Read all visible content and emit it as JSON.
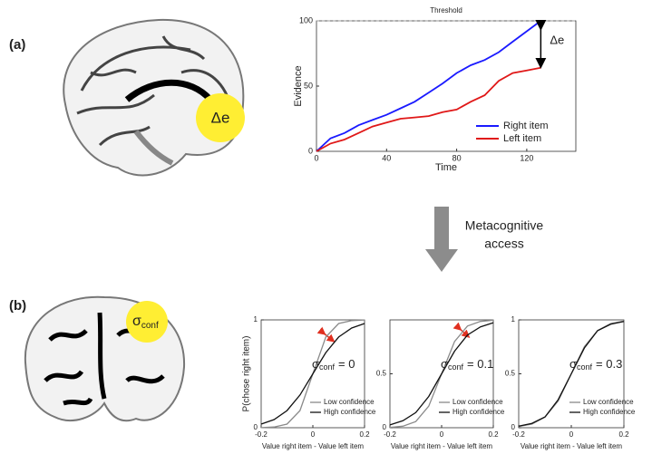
{
  "labels": {
    "panel_a": "(a)",
    "panel_b": "(b)",
    "brain_a": "Δe",
    "brain_b_symbol": "σ",
    "brain_b_sub": "conf",
    "arrow_text": [
      "Metacognitive",
      "access"
    ]
  },
  "chart_data": [
    {
      "type": "line",
      "title": "Threshold",
      "xlabel": "Time",
      "ylabel": "Evidence",
      "x": [
        0,
        8,
        16,
        24,
        32,
        40,
        48,
        56,
        64,
        72,
        80,
        88,
        96,
        104,
        112,
        120,
        128
      ],
      "series": [
        {
          "name": "Right item",
          "color": "#1a1aff",
          "values": [
            0,
            10,
            14,
            20,
            24,
            28,
            33,
            38,
            45,
            52,
            60,
            66,
            70,
            76,
            84,
            92,
            100
          ]
        },
        {
          "name": "Left item",
          "color": "#e01818",
          "values": [
            0,
            6,
            9,
            14,
            19,
            22,
            25,
            26,
            27,
            30,
            32,
            38,
            43,
            54,
            60,
            62,
            64
          ]
        }
      ],
      "xlim": [
        0,
        148
      ],
      "xticks": [
        0,
        40,
        80,
        120
      ],
      "ylim": [
        0,
        100
      ],
      "yticks": [
        0,
        50,
        100
      ],
      "threshold": 100,
      "annotation": "Δe",
      "legend": "lower right"
    },
    {
      "type": "line",
      "xlabel": "Value right item - Value left item",
      "ylabel": "P(chose right item)",
      "x": [
        -0.2,
        -0.15,
        -0.1,
        -0.05,
        0,
        0.05,
        0.1,
        0.15,
        0.2
      ],
      "series": [
        {
          "name": "Low confidence",
          "color": "#8a8a8a",
          "values": [
            0.001,
            0.007,
            0.034,
            0.159,
            0.5,
            0.841,
            0.966,
            0.993,
            0.999
          ]
        },
        {
          "name": "High confidence",
          "color": "#111111",
          "values": [
            0.034,
            0.076,
            0.159,
            0.303,
            0.5,
            0.697,
            0.841,
            0.924,
            0.966
          ]
        }
      ],
      "xlim": [
        -0.2,
        0.2
      ],
      "xticks": [
        -0.2,
        0,
        0.2
      ],
      "ylim": [
        0,
        1
      ],
      "yticks": [
        0,
        1
      ],
      "annotation": {
        "symbol": "σ",
        "subscript": "conf",
        "text": "= 0"
      },
      "legend": "lower right"
    },
    {
      "type": "line",
      "xlabel": "Value right item - Value left item",
      "x": [
        -0.2,
        -0.15,
        -0.1,
        -0.05,
        0,
        0.05,
        0.1,
        0.15,
        0.2
      ],
      "series": [
        {
          "name": "Low confidence",
          "color": "#8a8a8a",
          "values": [
            0.003,
            0.014,
            0.057,
            0.2,
            0.5,
            0.8,
            0.943,
            0.986,
            0.997
          ]
        },
        {
          "name": "High confidence",
          "color": "#111111",
          "values": [
            0.026,
            0.065,
            0.14,
            0.29,
            0.5,
            0.71,
            0.86,
            0.935,
            0.974
          ]
        }
      ],
      "xlim": [
        -0.2,
        0.2
      ],
      "xticks": [
        -0.2,
        0,
        0.2
      ],
      "ylim": [
        0,
        1
      ],
      "yticks": [
        0,
        0.5
      ],
      "annotation": {
        "symbol": "σ",
        "subscript": "conf",
        "text": "= 0.1"
      },
      "legend": "lower right"
    },
    {
      "type": "line",
      "xlabel": "Value right item - Value left item",
      "x": [
        -0.2,
        -0.15,
        -0.1,
        -0.05,
        0,
        0.05,
        0.1,
        0.15,
        0.2
      ],
      "series": [
        {
          "name": "Low confidence",
          "color": "#8a8a8a",
          "values": [
            0.012,
            0.034,
            0.098,
            0.248,
            0.5,
            0.752,
            0.902,
            0.966,
            0.988
          ]
        },
        {
          "name": "High confidence",
          "color": "#111111",
          "values": [
            0.014,
            0.04,
            0.1,
            0.26,
            0.5,
            0.74,
            0.9,
            0.96,
            0.986
          ]
        }
      ],
      "xlim": [
        -0.2,
        0.2
      ],
      "xticks": [
        -0.2,
        0,
        0.2
      ],
      "ylim": [
        0,
        1
      ],
      "yticks": [
        0,
        0.5,
        1
      ],
      "annotation": {
        "symbol": "σ",
        "subscript": "conf",
        "text": "= 0.3"
      },
      "legend": "lower right"
    }
  ]
}
